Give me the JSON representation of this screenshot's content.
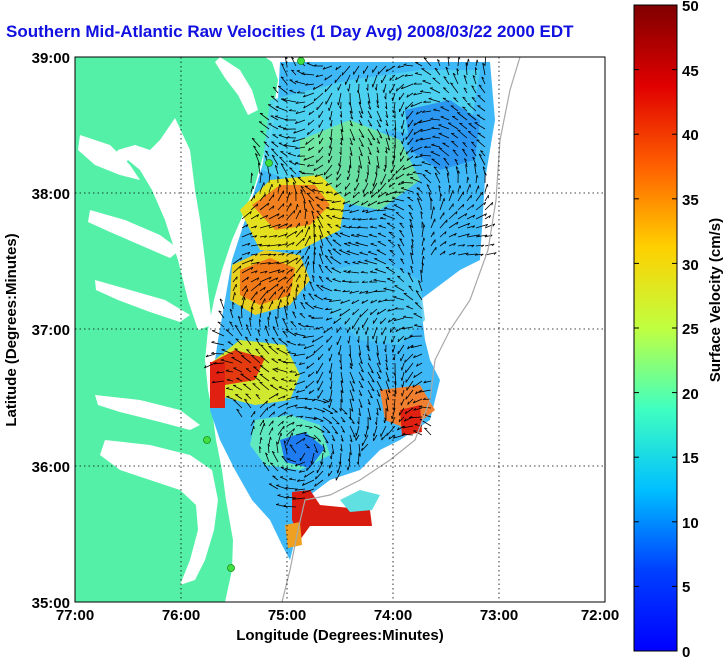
{
  "title": "Southern Mid-Atlantic Raw Velocities (1 Day Avg) 2008/03/22 2000 EDT",
  "map": {
    "xlabel": "Longitude (Degrees:Minutes)",
    "ylabel": "Latitude (Degrees:Minutes)",
    "x_ticks": [
      "77:00",
      "76:00",
      "75:00",
      "74:00",
      "73:00",
      "72:00"
    ],
    "y_ticks": [
      "39:00",
      "38:00",
      "37:00",
      "36:00",
      "35:00"
    ],
    "lon_range": [
      -77,
      -72
    ],
    "lat_range": [
      35,
      39
    ],
    "grid": true,
    "land_color": "#55f0a8",
    "water_color": "#ffffff"
  },
  "colorbar": {
    "label": "Surface Velocity (cm/s)",
    "ticks": [
      "0",
      "5",
      "10",
      "15",
      "20",
      "25",
      "30",
      "35",
      "40",
      "45",
      "50"
    ],
    "range": [
      0,
      50
    ],
    "colormap": "jet"
  }
}
